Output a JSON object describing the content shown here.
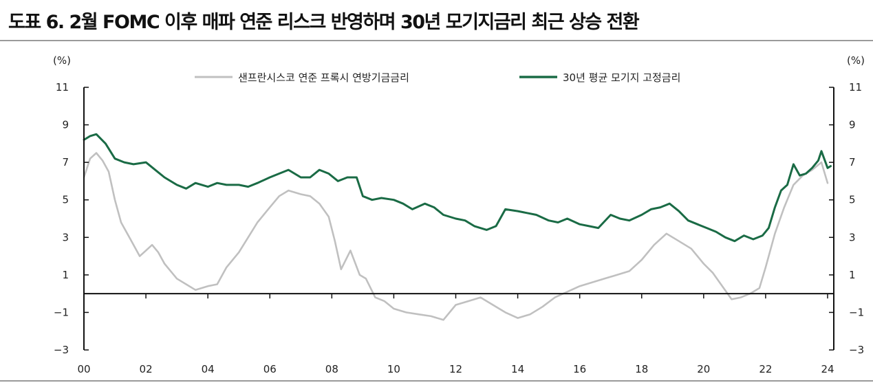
{
  "title": "도표 6. 2월 FOMC 이후 매파 연준 리스크 반영하며 30년 모기지금리 최근 상승 전환",
  "chart_data": {
    "type": "line",
    "left_unit": "(%)",
    "right_unit": "(%)",
    "ylim": [
      -3,
      11
    ],
    "yticks": [
      -3,
      -1,
      1,
      3,
      5,
      7,
      9,
      11
    ],
    "ytick_labels": [
      "−3",
      "−1",
      "1",
      "3",
      "5",
      "7",
      "9",
      "11"
    ],
    "xlim": [
      2000,
      2024.2
    ],
    "xticks": [
      2000,
      2002,
      2004,
      2006,
      2008,
      2010,
      2012,
      2014,
      2016,
      2018,
      2020,
      2022,
      2024
    ],
    "xtick_labels": [
      "00",
      "02",
      "04",
      "06",
      "08",
      "10",
      "12",
      "14",
      "16",
      "18",
      "20",
      "22",
      "24"
    ],
    "legend_position": "top-center",
    "series": [
      {
        "name": "샌프란시스코 연준 프록시 연방기금금리",
        "color": "#c0c0c0",
        "x": [
          2000.0,
          2000.2,
          2000.4,
          2000.6,
          2000.8,
          2001.0,
          2001.2,
          2001.5,
          2001.8,
          2002.0,
          2002.2,
          2002.4,
          2002.6,
          2002.8,
          2003.0,
          2003.3,
          2003.6,
          2004.0,
          2004.3,
          2004.6,
          2005.0,
          2005.3,
          2005.6,
          2006.0,
          2006.3,
          2006.6,
          2007.0,
          2007.3,
          2007.6,
          2007.9,
          2008.1,
          2008.3,
          2008.6,
          2008.9,
          2009.1,
          2009.4,
          2009.7,
          2010.0,
          2010.4,
          2010.8,
          2011.2,
          2011.6,
          2012.0,
          2012.4,
          2012.8,
          2013.2,
          2013.6,
          2014.0,
          2014.4,
          2014.8,
          2015.2,
          2015.6,
          2016.0,
          2016.4,
          2016.8,
          2017.2,
          2017.6,
          2018.0,
          2018.4,
          2018.8,
          2019.2,
          2019.6,
          2020.0,
          2020.3,
          2020.6,
          2020.9,
          2021.2,
          2021.5,
          2021.8,
          2022.0,
          2022.3,
          2022.6,
          2022.9,
          2023.2,
          2023.5,
          2023.8,
          2024.0
        ],
        "values": [
          6.2,
          7.2,
          7.5,
          7.1,
          6.5,
          5.0,
          3.8,
          2.9,
          2.0,
          2.3,
          2.6,
          2.2,
          1.6,
          1.2,
          0.8,
          0.5,
          0.2,
          0.4,
          0.5,
          1.4,
          2.2,
          3.0,
          3.8,
          4.6,
          5.2,
          5.5,
          5.3,
          5.2,
          4.8,
          4.1,
          2.8,
          1.3,
          2.3,
          1.0,
          0.8,
          -0.2,
          -0.4,
          -0.8,
          -1.0,
          -1.1,
          -1.2,
          -1.4,
          -0.6,
          -0.4,
          -0.2,
          -0.6,
          -1.0,
          -1.3,
          -1.1,
          -0.7,
          -0.2,
          0.1,
          0.4,
          0.6,
          0.8,
          1.0,
          1.2,
          1.8,
          2.6,
          3.2,
          2.8,
          2.4,
          1.6,
          1.1,
          0.4,
          -0.3,
          -0.2,
          0.0,
          0.3,
          1.4,
          3.2,
          4.6,
          5.8,
          6.3,
          6.6,
          7.0,
          5.9
        ]
      },
      {
        "name": "30년 평균 모기지 고정금리",
        "color": "#1a6b45",
        "x": [
          2000.0,
          2000.2,
          2000.4,
          2000.7,
          2001.0,
          2001.3,
          2001.6,
          2002.0,
          2002.3,
          2002.6,
          2003.0,
          2003.3,
          2003.6,
          2004.0,
          2004.3,
          2004.6,
          2005.0,
          2005.3,
          2005.6,
          2006.0,
          2006.3,
          2006.6,
          2007.0,
          2007.3,
          2007.6,
          2007.9,
          2008.2,
          2008.5,
          2008.8,
          2009.0,
          2009.3,
          2009.6,
          2010.0,
          2010.3,
          2010.6,
          2011.0,
          2011.3,
          2011.6,
          2012.0,
          2012.3,
          2012.6,
          2013.0,
          2013.3,
          2013.6,
          2014.0,
          2014.3,
          2014.6,
          2015.0,
          2015.3,
          2015.6,
          2016.0,
          2016.3,
          2016.6,
          2017.0,
          2017.3,
          2017.6,
          2018.0,
          2018.3,
          2018.6,
          2018.9,
          2019.2,
          2019.5,
          2019.8,
          2020.1,
          2020.4,
          2020.7,
          2021.0,
          2021.3,
          2021.6,
          2021.9,
          2022.1,
          2022.3,
          2022.5,
          2022.7,
          2022.9,
          2023.1,
          2023.3,
          2023.5,
          2023.7,
          2023.8,
          2024.0,
          2024.1
        ],
        "values": [
          8.2,
          8.4,
          8.5,
          8.0,
          7.2,
          7.0,
          6.9,
          7.0,
          6.6,
          6.2,
          5.8,
          5.6,
          5.9,
          5.7,
          5.9,
          5.8,
          5.8,
          5.7,
          5.9,
          6.2,
          6.4,
          6.6,
          6.2,
          6.2,
          6.6,
          6.4,
          6.0,
          6.2,
          6.2,
          5.2,
          5.0,
          5.1,
          5.0,
          4.8,
          4.5,
          4.8,
          4.6,
          4.2,
          4.0,
          3.9,
          3.6,
          3.4,
          3.6,
          4.5,
          4.4,
          4.3,
          4.2,
          3.9,
          3.8,
          4.0,
          3.7,
          3.6,
          3.5,
          4.2,
          4.0,
          3.9,
          4.2,
          4.5,
          4.6,
          4.8,
          4.4,
          3.9,
          3.7,
          3.5,
          3.3,
          3.0,
          2.8,
          3.1,
          2.9,
          3.1,
          3.5,
          4.6,
          5.5,
          5.8,
          6.9,
          6.3,
          6.4,
          6.7,
          7.1,
          7.6,
          6.7,
          6.8
        ]
      }
    ]
  }
}
